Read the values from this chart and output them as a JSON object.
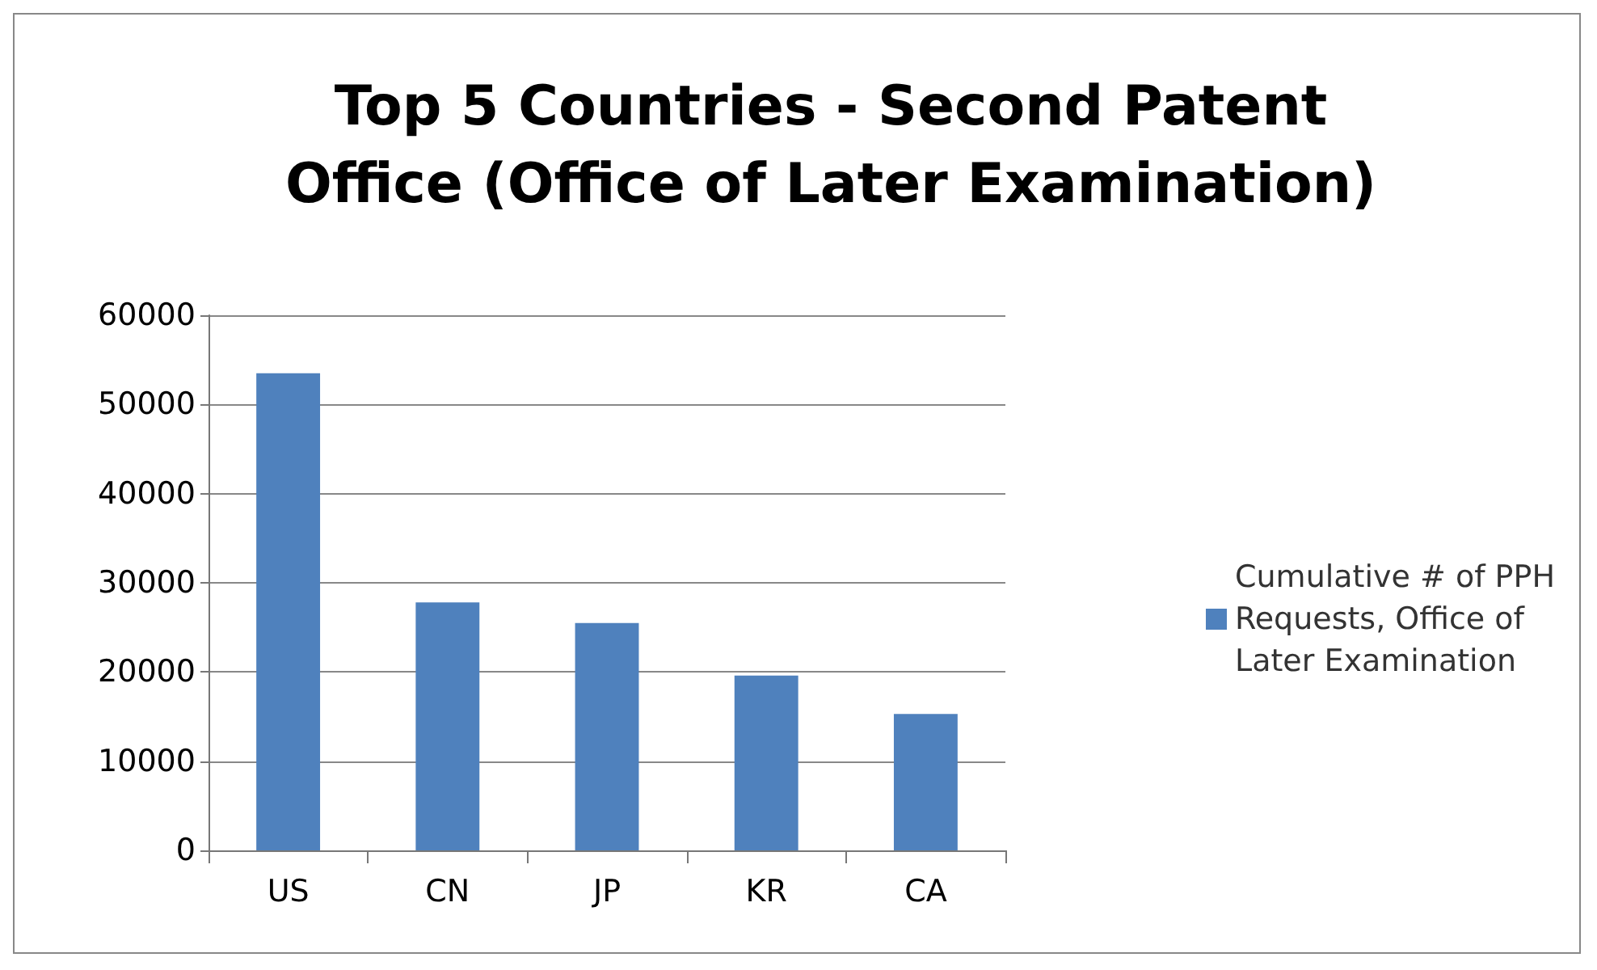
{
  "chart_data": {
    "type": "bar",
    "title": "Top 5 Countries - Second Patent Office (Office of Later Examination)",
    "categories": [
      "US",
      "CN",
      "JP",
      "KR",
      "CA"
    ],
    "series": [
      {
        "name": "Cumulative # of PPH Requests, Office of Later Examination",
        "color": "#4f81bd",
        "values": [
          53500,
          27800,
          25500,
          19600,
          15300
        ]
      }
    ],
    "ylim": [
      0,
      60000
    ],
    "yticks": [
      0,
      10000,
      20000,
      30000,
      40000,
      50000,
      60000
    ],
    "grid": "y",
    "legend": "right"
  }
}
